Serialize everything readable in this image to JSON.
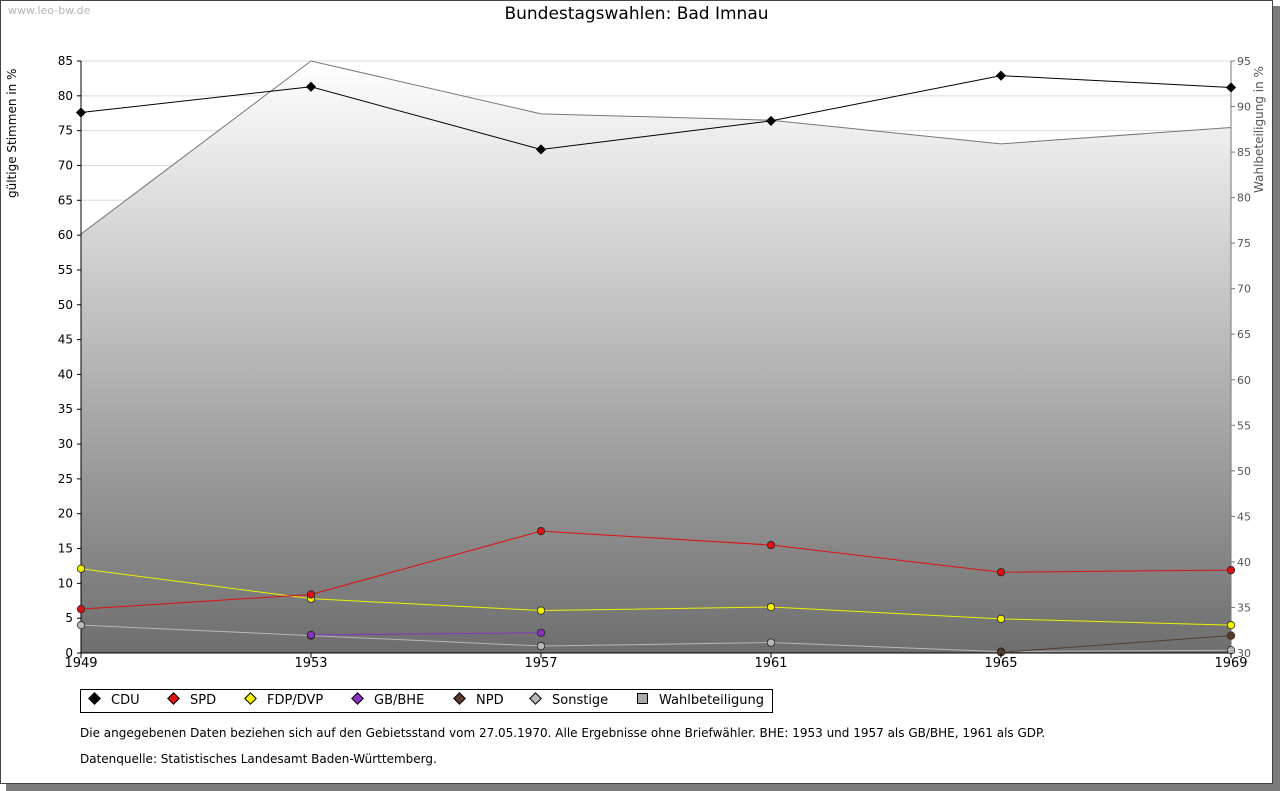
{
  "site_label": "www.leo-bw.de",
  "chart_data": {
    "type": "line",
    "title": "Bundestagswahlen: Bad Imnau",
    "ylabel": "gültige Stimmen in %",
    "y2label": "Wahlbeteiligung in %",
    "x": [
      "1949",
      "1953",
      "1957",
      "1961",
      "1965",
      "1969"
    ],
    "ylim": [
      0,
      85
    ],
    "y2lim": [
      30,
      95
    ],
    "yticks": [
      "0",
      "5",
      "10",
      "15",
      "20",
      "25",
      "30",
      "35",
      "40",
      "45",
      "50",
      "55",
      "60",
      "65",
      "70",
      "75",
      "80",
      "85"
    ],
    "y2ticks": [
      "30",
      "35",
      "40",
      "45",
      "50",
      "55",
      "60",
      "65",
      "70",
      "75",
      "80",
      "85",
      "90",
      "95"
    ],
    "grid": true,
    "legend_position": "bottom",
    "series": [
      {
        "name": "CDU",
        "color": "#000000",
        "values": [
          77.6,
          81.3,
          72.3,
          76.4,
          82.9,
          81.2
        ]
      },
      {
        "name": "SPD",
        "color": "#dd1111",
        "values": [
          6.3,
          8.4,
          17.5,
          15.5,
          11.6,
          11.9
        ]
      },
      {
        "name": "FDP/DVP",
        "color": "#f0f000",
        "values": [
          12.1,
          7.8,
          6.1,
          6.6,
          4.9,
          4.0
        ]
      },
      {
        "name": "GB/BHE",
        "color": "#8833bb",
        "values": [
          null,
          2.6,
          2.9,
          null,
          null,
          null
        ]
      },
      {
        "name": "NPD",
        "color": "#5a3a2a",
        "values": [
          null,
          null,
          null,
          null,
          0.1,
          2.5
        ]
      },
      {
        "name": "Sonstige",
        "color": "#b8b8b8",
        "values": [
          4.0,
          2.5,
          1.0,
          1.5,
          0.2,
          0.4
        ]
      }
    ],
    "turnout": {
      "name": "Wahlbeteiligung",
      "axis": "right",
      "values": [
        76.0,
        95.0,
        89.2,
        88.5,
        85.9,
        87.7
      ]
    }
  },
  "legend": {
    "items": [
      {
        "label": "CDU",
        "color": "#000000"
      },
      {
        "label": "SPD",
        "color": "#dd1111"
      },
      {
        "label": "FDP/DVP",
        "color": "#f0f000"
      },
      {
        "label": "GB/BHE",
        "color": "#8833bb"
      },
      {
        "label": "NPD",
        "color": "#5a3a2a"
      },
      {
        "label": "Sonstige",
        "color": "#b8b8b8"
      }
    ],
    "turnout_label": "Wahlbeteiligung"
  },
  "notes": {
    "line1": "Die angegebenen Daten beziehen sich auf den Gebietsstand vom 27.05.1970. Alle Ergebnisse ohne Briefwähler. BHE: 1953 und 1957 als GB/BHE, 1961 als GDP.",
    "line2": "Datenquelle: Statistisches Landesamt Baden-Württemberg."
  }
}
